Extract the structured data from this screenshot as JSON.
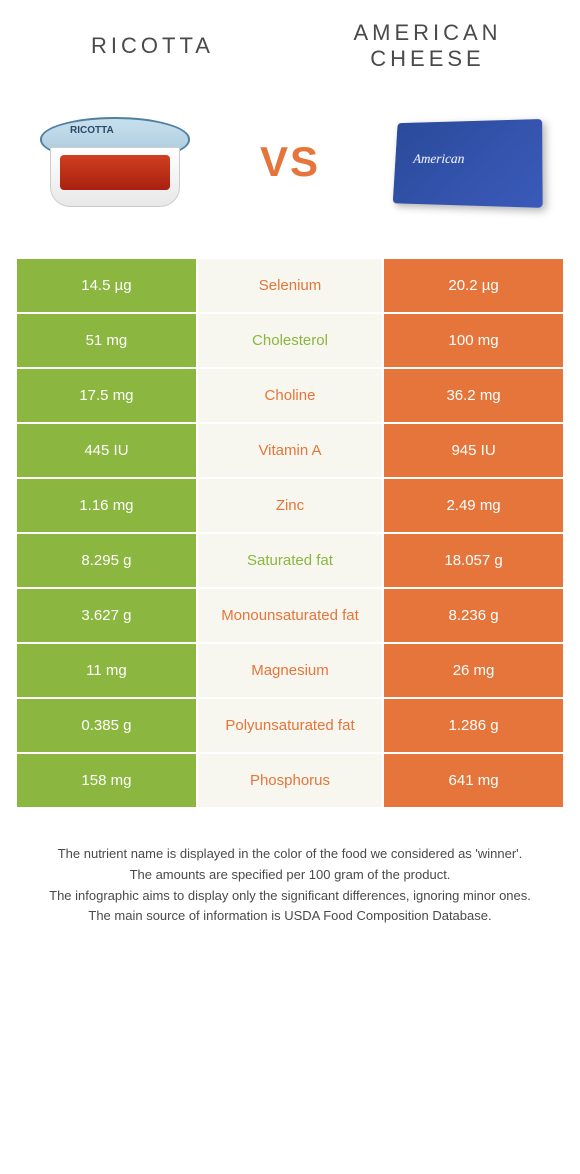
{
  "header": {
    "left_title": "Ricotta",
    "right_title": "American cheese",
    "vs_label": "VS"
  },
  "products": {
    "ricotta_brand": "RICOTTA",
    "american_brand": "American"
  },
  "colors": {
    "left_bg": "#8bb63f",
    "mid_bg": "#f7f7ef",
    "right_bg": "#e5753a",
    "nutrient_green": "#8bb63f",
    "nutrient_orange": "#e5753a"
  },
  "rows": [
    {
      "left": "14.5 µg",
      "nutrient": "Selenium",
      "right": "20.2 µg",
      "winner": "right"
    },
    {
      "left": "51 mg",
      "nutrient": "Cholesterol",
      "right": "100 mg",
      "winner": "left"
    },
    {
      "left": "17.5 mg",
      "nutrient": "Choline",
      "right": "36.2 mg",
      "winner": "right"
    },
    {
      "left": "445 IU",
      "nutrient": "Vitamin A",
      "right": "945 IU",
      "winner": "right"
    },
    {
      "left": "1.16 mg",
      "nutrient": "Zinc",
      "right": "2.49 mg",
      "winner": "right"
    },
    {
      "left": "8.295 g",
      "nutrient": "Saturated fat",
      "right": "18.057 g",
      "winner": "left"
    },
    {
      "left": "3.627 g",
      "nutrient": "Monounsaturated fat",
      "right": "8.236 g",
      "winner": "right"
    },
    {
      "left": "11 mg",
      "nutrient": "Magnesium",
      "right": "26 mg",
      "winner": "right"
    },
    {
      "left": "0.385 g",
      "nutrient": "Polyunsaturated fat",
      "right": "1.286 g",
      "winner": "right"
    },
    {
      "left": "158 mg",
      "nutrient": "Phosphorus",
      "right": "641 mg",
      "winner": "right"
    }
  ],
  "footer": {
    "line1": "The nutrient name is displayed in the color of the food we considered as 'winner'.",
    "line2": "The amounts are specified per 100 gram of the product.",
    "line3": "The infographic aims to display only the significant differences, ignoring minor ones.",
    "line4": "The main source of information is USDA Food Composition Database."
  }
}
